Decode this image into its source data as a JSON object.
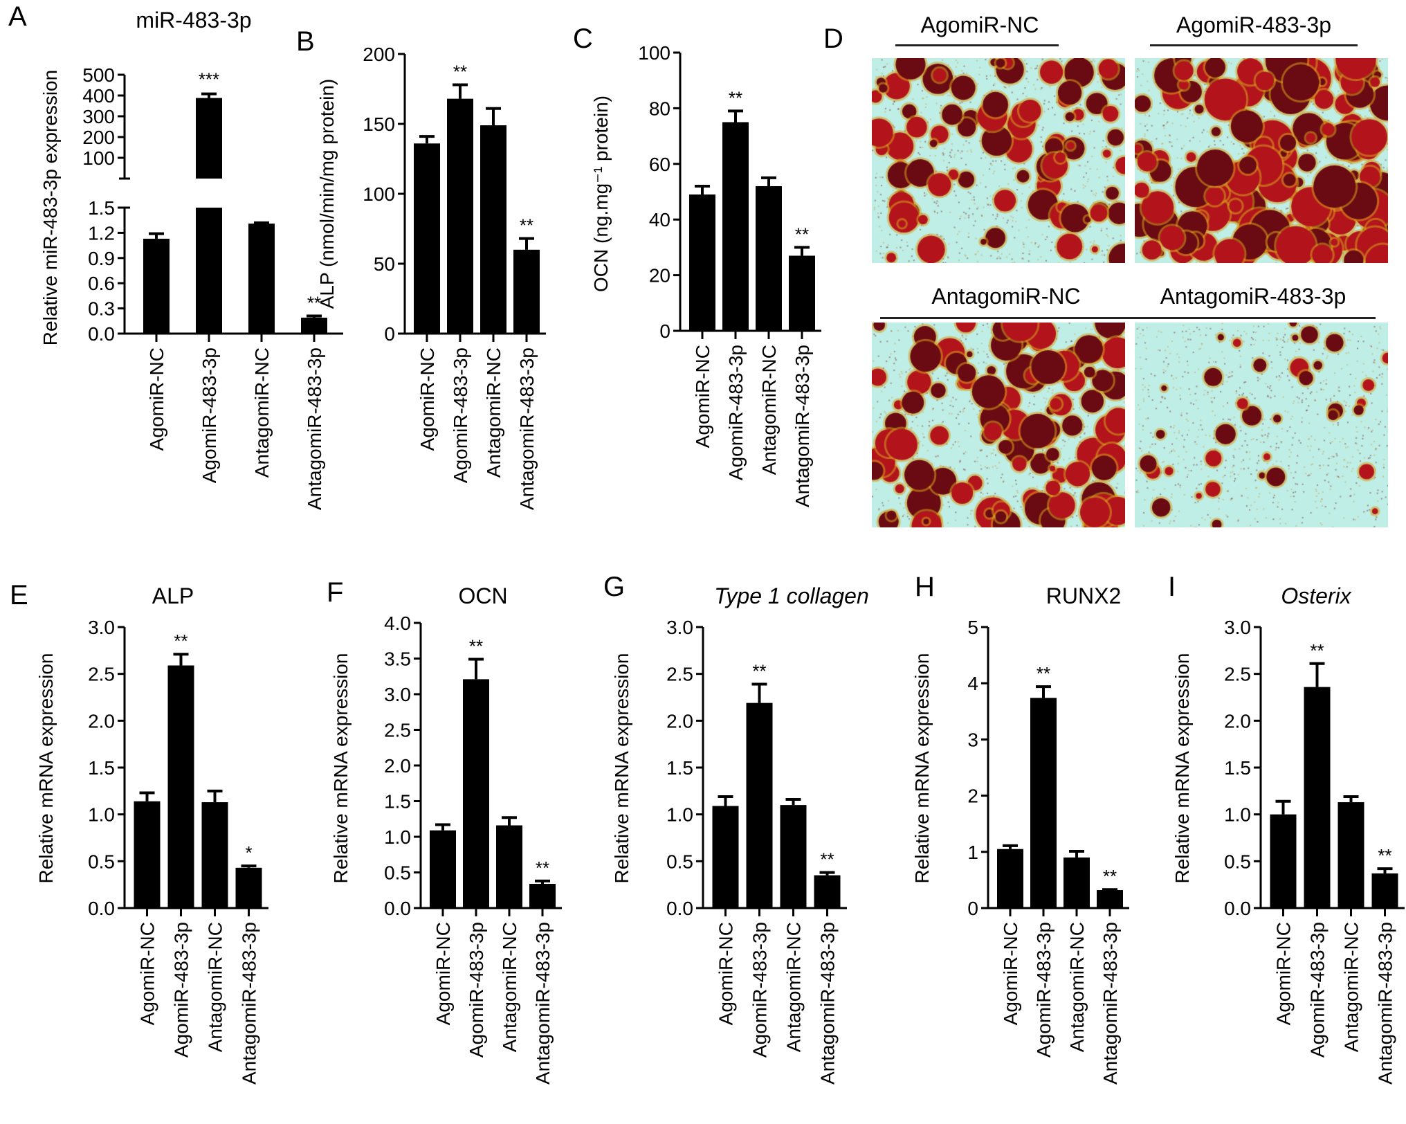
{
  "chart_data": [
    {
      "id": "A",
      "type": "bar",
      "letter": "A",
      "title": "miR-483-3p",
      "title_italic": false,
      "ylabel": "Relative miR-483-3p expression",
      "categories": [
        "AgomiR-NC",
        "AgomiR-483-3p",
        "AntagomiR-NC",
        "AntagomiR-483-3p"
      ],
      "broken_axis": true,
      "lower_ylim": [
        0,
        1.5
      ],
      "lower_ticks": [
        "0.0",
        "0.3",
        "0.6",
        "0.9",
        "1.2",
        "1.5"
      ],
      "upper_ylim": [
        0,
        500
      ],
      "upper_ticks": [
        "100",
        "200",
        "300",
        "400",
        "500"
      ],
      "values": [
        1.13,
        388,
        1.31,
        0.19
      ],
      "errors": [
        0.06,
        20,
        0.01,
        0.02
      ],
      "significance": [
        "",
        "***",
        "",
        "**"
      ]
    },
    {
      "id": "B",
      "type": "bar",
      "letter": "B",
      "title": "",
      "title_italic": false,
      "ylabel": "ALP (nmol/min/mg protein)",
      "categories": [
        "AgomiR-NC",
        "AgomiR-483-3p",
        "AntagomiR-NC",
        "AntagomiR-483-3p"
      ],
      "ylim": [
        0,
        200
      ],
      "ticks": [
        "0",
        "50",
        "100",
        "150",
        "200"
      ],
      "values": [
        136,
        168,
        149,
        60
      ],
      "errors": [
        5,
        10,
        12,
        8
      ],
      "significance": [
        "",
        "**",
        "",
        "**"
      ]
    },
    {
      "id": "C",
      "type": "bar",
      "letter": "C",
      "title": "",
      "title_italic": false,
      "ylabel": "OCN (ng.mg⁻¹ protein)",
      "categories": [
        "AgomiR-NC",
        "AgomiR-483-3p",
        "AntagomiR-NC",
        "AntagomiR-483-3p"
      ],
      "ylim": [
        0,
        100
      ],
      "ticks": [
        "0",
        "20",
        "40",
        "60",
        "80",
        "100"
      ],
      "values": [
        49,
        75,
        52,
        27
      ],
      "errors": [
        3,
        4,
        3,
        3
      ],
      "significance": [
        "",
        "**",
        "",
        "**"
      ]
    },
    {
      "id": "E",
      "type": "bar",
      "letter": "E",
      "title": "ALP",
      "title_italic": false,
      "ylabel": "Relative mRNA expression",
      "categories": [
        "AgomiR-NC",
        "AgomiR-483-3p",
        "AntagomiR-NC",
        "AntagomiR-483-3p"
      ],
      "ylim": [
        0,
        3.0
      ],
      "ticks": [
        "0.0",
        "0.5",
        "1.0",
        "1.5",
        "2.0",
        "2.5",
        "3.0"
      ],
      "values": [
        1.14,
        2.59,
        1.13,
        0.43
      ],
      "errors": [
        0.09,
        0.12,
        0.12,
        0.02
      ],
      "significance": [
        "",
        "**",
        "",
        "*"
      ]
    },
    {
      "id": "F",
      "type": "bar",
      "letter": "F",
      "title": "OCN",
      "title_italic": false,
      "ylabel": "Relative mRNA expression",
      "categories": [
        "AgomiR-NC",
        "AgomiR-483-3p",
        "AntagomiR-NC",
        "AntagomiR-483-3p"
      ],
      "ylim": [
        0,
        4.0
      ],
      "ticks": [
        "0.0",
        "0.5",
        "1.0",
        "1.5",
        "2.0",
        "2.5",
        "3.0",
        "3.5",
        "4.0"
      ],
      "values": [
        1.09,
        3.21,
        1.16,
        0.34
      ],
      "errors": [
        0.08,
        0.28,
        0.11,
        0.04
      ],
      "significance": [
        "",
        "**",
        "",
        "**"
      ]
    },
    {
      "id": "G",
      "type": "bar",
      "letter": "G",
      "title": "Type 1 collagen",
      "title_italic": true,
      "ylabel": "Relative mRNA expression",
      "categories": [
        "AgomiR-NC",
        "AgomiR-483-3p",
        "AntagomiR-NC",
        "AntagomiR-483-3p"
      ],
      "ylim": [
        0,
        3.0
      ],
      "ticks": [
        "0.0",
        "0.5",
        "1.0",
        "1.5",
        "2.0",
        "2.5",
        "3.0"
      ],
      "values": [
        1.09,
        2.19,
        1.1,
        0.35
      ],
      "errors": [
        0.1,
        0.2,
        0.06,
        0.03
      ],
      "significance": [
        "",
        "**",
        "",
        "**"
      ]
    },
    {
      "id": "H",
      "type": "bar",
      "letter": "H",
      "title": "RUNX2",
      "title_italic": false,
      "ylabel": "Relative mRNA expression",
      "categories": [
        "AgomiR-NC",
        "AgomiR-483-3p",
        "AntagomiR-NC",
        "AntagomiR-483-3p"
      ],
      "ylim": [
        0,
        5
      ],
      "ticks": [
        "0",
        "1",
        "2",
        "3",
        "4",
        "5"
      ],
      "values": [
        1.05,
        3.74,
        0.9,
        0.32
      ],
      "errors": [
        0.06,
        0.2,
        0.11,
        0.01
      ],
      "significance": [
        "",
        "**",
        "",
        "**"
      ]
    },
    {
      "id": "I",
      "type": "bar",
      "letter": "I",
      "title": "Osterix",
      "title_italic": true,
      "ylabel": "Relative mRNA expression",
      "categories": [
        "AgomiR-NC",
        "AgomiR-483-3p",
        "AntagomiR-NC",
        "AntagomiR-483-3p"
      ],
      "ylim": [
        0,
        3.0
      ],
      "ticks": [
        "0.0",
        "0.5",
        "1.0",
        "1.5",
        "2.0",
        "2.5",
        "3.0"
      ],
      "values": [
        1.0,
        2.36,
        1.13,
        0.37
      ],
      "errors": [
        0.14,
        0.25,
        0.06,
        0.05
      ],
      "significance": [
        "",
        "**",
        "",
        "**"
      ]
    }
  ],
  "micrographs": {
    "letter": "D",
    "stain_colors": {
      "background": "#bfeee6",
      "stain": "#b3141c",
      "dark": "#6a0a12",
      "halo": "#d9a21e"
    },
    "images": [
      {
        "label": "AgomiR-NC",
        "density": 0.45
      },
      {
        "label": "AgomiR-483-3p",
        "density": 0.85
      },
      {
        "label": "AntagomiR-NC",
        "density": 0.6
      },
      {
        "label": "AntagomiR-483-3p",
        "density": 0.12
      }
    ],
    "bottom_group_label_left": "AntagomiR-NC",
    "bottom_group_label_right": "AntagomiR-483-3p"
  }
}
